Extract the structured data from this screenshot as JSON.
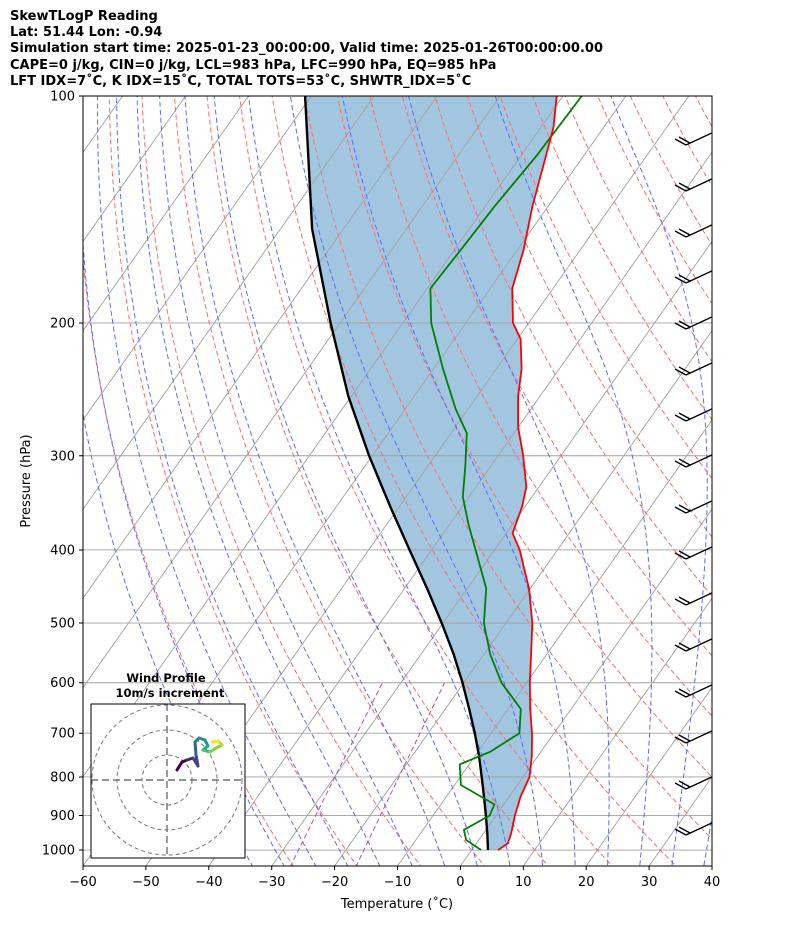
{
  "header": {
    "title": "SkewTLogP Reading",
    "location": "Lat: 51.44   Lon: -0.94",
    "times": "Simulation start time: 2025-01-23_00:00:00, Valid time: 2025-01-26T00:00:00.00",
    "indices_1": "CAPE=0 j/kg, CIN=0 j/kg, LCL=983 hPa, LFC=990 hPa, EQ=985 hPa",
    "indices_2": "LFT IDX=7˚C, K IDX=15˚C, TOTAL TOTS=53˚C, SHWTR_IDX=5˚C"
  },
  "chart_data": {
    "type": "skewt",
    "xlabel": "Temperature (˚C)",
    "ylabel": "Pressure (hPa)",
    "xlim": [
      -60,
      40
    ],
    "ylim": [
      1050,
      100
    ],
    "x_ticks": [
      -60,
      -50,
      -40,
      -30,
      -20,
      -10,
      0,
      10,
      20,
      30,
      40
    ],
    "y_ticks": [
      1000,
      900,
      800,
      700,
      600,
      500,
      400,
      300,
      200,
      100
    ],
    "grid": true,
    "colors": {
      "temperature": "#ff0000",
      "dewpoint": "#008000",
      "parcel": "#000000",
      "cape_shading": "#a3c6e0",
      "dry_adiabats": "#ff6a6a",
      "moist_adiabats": "#5a6cff",
      "mixing_ratio": "#b94cb9",
      "isotherms": "#a0a0a0"
    },
    "series": [
      {
        "key": "temperature",
        "points": [
          [
            1000,
            4.2
          ],
          [
            980,
            5.0
          ],
          [
            950,
            4.4
          ],
          [
            900,
            3.0
          ],
          [
            850,
            1.8
          ],
          [
            800,
            1.0
          ],
          [
            750,
            -1.0
          ],
          [
            700,
            -3.5
          ],
          [
            650,
            -6.5
          ],
          [
            600,
            -9.5
          ],
          [
            550,
            -12.5
          ],
          [
            500,
            -15.8
          ],
          [
            450,
            -20.2
          ],
          [
            400,
            -26.0
          ],
          [
            380,
            -29.0
          ],
          [
            350,
            -30.5
          ],
          [
            330,
            -32.0
          ],
          [
            300,
            -36.0
          ],
          [
            275,
            -40.0
          ],
          [
            250,
            -43.5
          ],
          [
            230,
            -46.0
          ],
          [
            210,
            -49.5
          ],
          [
            200,
            -52.5
          ],
          [
            180,
            -56.5
          ],
          [
            160,
            -59.0
          ],
          [
            140,
            -62.5
          ],
          [
            120,
            -66.0
          ],
          [
            110,
            -68.0
          ],
          [
            100,
            -71.0
          ]
        ]
      },
      {
        "key": "dewpoint",
        "points": [
          [
            1000,
            1.5
          ],
          [
            970,
            -2.0
          ],
          [
            940,
            -3.5
          ],
          [
            900,
            -1.0
          ],
          [
            870,
            -1.5
          ],
          [
            820,
            -9.0
          ],
          [
            770,
            -11.5
          ],
          [
            740,
            -8.0
          ],
          [
            700,
            -5.5
          ],
          [
            650,
            -8.0
          ],
          [
            600,
            -14.0
          ],
          [
            550,
            -19.0
          ],
          [
            500,
            -23.5
          ],
          [
            450,
            -27.0
          ],
          [
            400,
            -33.0
          ],
          [
            370,
            -37.0
          ],
          [
            340,
            -41.0
          ],
          [
            310,
            -44.0
          ],
          [
            280,
            -47.5
          ],
          [
            260,
            -52.0
          ],
          [
            230,
            -58.5
          ],
          [
            200,
            -65.5
          ],
          [
            180,
            -69.5
          ],
          [
            160,
            -69.0
          ],
          [
            140,
            -68.5
          ],
          [
            120,
            -67.5
          ],
          [
            100,
            -67.0
          ]
        ]
      },
      {
        "key": "parcel",
        "points": [
          [
            1000,
            2.6
          ],
          [
            950,
            0.6
          ],
          [
            900,
            -1.6
          ],
          [
            850,
            -4.0
          ],
          [
            800,
            -6.6
          ],
          [
            750,
            -9.4
          ],
          [
            700,
            -12.6
          ],
          [
            650,
            -16.2
          ],
          [
            600,
            -20.2
          ],
          [
            550,
            -24.8
          ],
          [
            500,
            -30.2
          ],
          [
            450,
            -36.4
          ],
          [
            400,
            -43.5
          ],
          [
            350,
            -51.5
          ],
          [
            300,
            -60.5
          ],
          [
            250,
            -70.5
          ],
          [
            200,
            -81.5
          ],
          [
            150,
            -95.0
          ],
          [
            100,
            -111.0
          ]
        ]
      }
    ],
    "wind_profile": {
      "title": "Wind Profile",
      "subtitle": "10m/s increment"
    }
  }
}
